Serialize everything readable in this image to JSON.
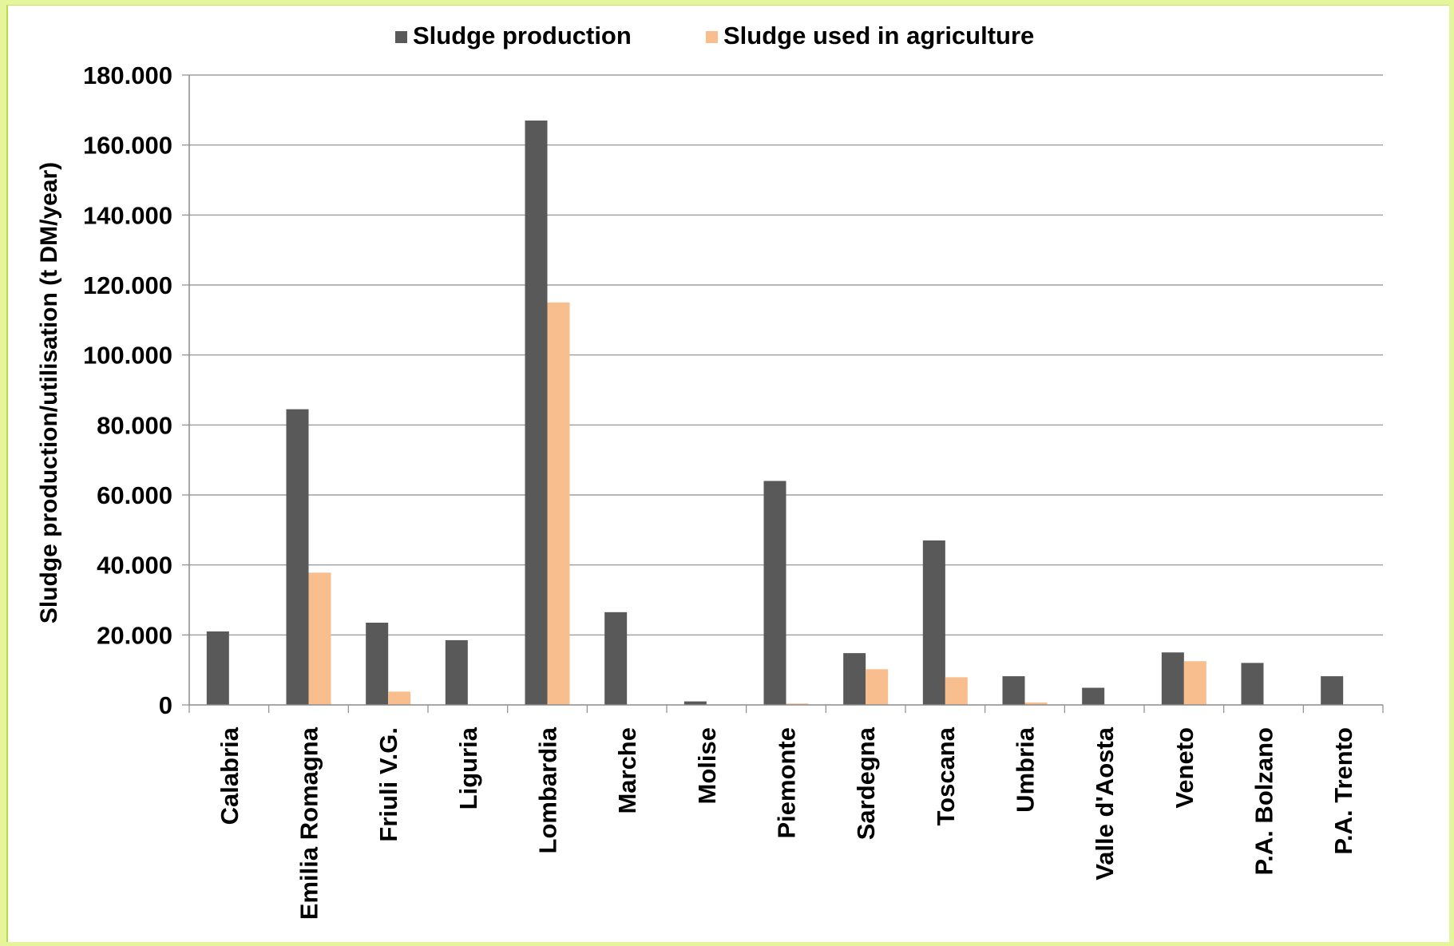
{
  "chart_data": {
    "type": "bar",
    "title": "",
    "xlabel": "",
    "ylabel": "Sludge production/utilisation (t DM/year)",
    "ylim": [
      0,
      180000
    ],
    "yticks": [
      0,
      20000,
      40000,
      60000,
      80000,
      100000,
      120000,
      140000,
      160000,
      180000
    ],
    "ytick_labels": [
      "0",
      "20.000",
      "40.000",
      "60.000",
      "80.000",
      "100.000",
      "120.000",
      "140.000",
      "160.000",
      "180.000"
    ],
    "grid": true,
    "legend_position": "top-center",
    "categories": [
      "Calabria",
      "Emilia Romagna",
      "Friuli V.G.",
      "Liguria",
      "Lombardia",
      "Marche",
      "Molise",
      "Piemonte",
      "Sardegna",
      "Toscana",
      "Umbria",
      "Valle d'Aosta",
      "Veneto",
      "P.A. Bolzano",
      "P.A. Trento"
    ],
    "series": [
      {
        "name": "Sludge production",
        "color": "#595959",
        "values": [
          21000,
          84500,
          23500,
          18500,
          167000,
          26500,
          1000,
          64000,
          14800,
          47000,
          8200,
          4900,
          15000,
          12000,
          8200
        ]
      },
      {
        "name": "Sludge used in agriculture",
        "color": "#f9be8d",
        "values": [
          0,
          37800,
          3800,
          0,
          115000,
          0,
          0,
          400,
          10200,
          7900,
          700,
          0,
          12500,
          0,
          0
        ]
      }
    ]
  }
}
